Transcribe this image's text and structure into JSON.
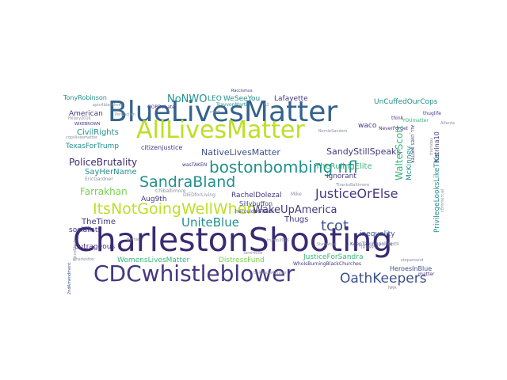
{
  "palette": {
    "navy": "#3b2a72",
    "indigo": "#453781",
    "blue": "#33638d",
    "steel": "#3c508b",
    "teal": "#22908c",
    "green": "#35b779",
    "lime": "#7ad151",
    "yellow": "#bddf26",
    "gray": "#8a8fa0"
  },
  "words": [
    {
      "t": "CharlestonShooting",
      "c": "navy"
    },
    {
      "t": "BlueLivesMatter",
      "c": "blue"
    },
    {
      "t": "AllLivesMatter",
      "c": "yellow"
    },
    {
      "t": "CDCwhistleblower",
      "c": "indigo"
    },
    {
      "t": "bostonbombing nfl",
      "c": "teal"
    },
    {
      "t": "ItsNotGoingWellWhen",
      "c": "yellow"
    },
    {
      "t": "SandraBland",
      "c": "teal"
    },
    {
      "t": "JusticeOrElse",
      "c": "indigo"
    },
    {
      "t": "OathKeepers",
      "c": "steel"
    },
    {
      "t": "tcot",
      "c": "steel"
    },
    {
      "t": "UniteBlue",
      "c": "teal"
    },
    {
      "t": "WakeUpAmerica",
      "c": "indigo"
    },
    {
      "t": "PoliceBrutality",
      "c": "navy"
    },
    {
      "t": "NoNWO",
      "c": "teal"
    },
    {
      "t": "NativeLivesMatter",
      "c": "steel"
    },
    {
      "t": "SandyStillSpeaks",
      "c": "indigo"
    },
    {
      "t": "Farrakhan",
      "c": "lime"
    },
    {
      "t": "TonyRobinson",
      "c": "teal"
    },
    {
      "t": "LEO",
      "c": "teal"
    },
    {
      "t": "WeSeeYou",
      "c": "teal"
    },
    {
      "t": "Lafayette",
      "c": "indigo"
    },
    {
      "t": "UnCuffedOurCops",
      "c": "teal"
    },
    {
      "t": "waco",
      "c": "indigo"
    },
    {
      "t": "American",
      "c": "indigo"
    },
    {
      "t": "CivilRights",
      "c": "teal"
    },
    {
      "t": "TexasForTrump",
      "c": "teal"
    },
    {
      "t": "citizenjustice",
      "c": "indigo"
    },
    {
      "t": "SayHerName",
      "c": "teal"
    },
    {
      "t": "TheRulingElite",
      "c": "green"
    },
    {
      "t": "ignorant",
      "c": "indigo"
    },
    {
      "t": "Aug9th",
      "c": "indigo"
    },
    {
      "t": "RachelDolezal",
      "c": "indigo"
    },
    {
      "t": "Sillybuffon",
      "c": "steel"
    },
    {
      "t": "TheTime",
      "c": "indigo"
    },
    {
      "t": "Thugs",
      "c": "indigo"
    },
    {
      "t": "inequality",
      "c": "steel"
    },
    {
      "t": "socialists",
      "c": "indigo"
    },
    {
      "t": "outrageous",
      "c": "indigo"
    },
    {
      "t": "WomensLivesMatter",
      "c": "green"
    },
    {
      "t": "DistressFund",
      "c": "lime"
    },
    {
      "t": "JusticeForSandra",
      "c": "green"
    },
    {
      "t": "HeroesInBlue",
      "c": "steel"
    },
    {
      "t": "WhoIsBurningBlackChurches",
      "c": "indigo"
    },
    {
      "t": "KeepTalkingpolice",
      "c": "steel"
    },
    {
      "t": "WalterScott",
      "c": "green"
    },
    {
      "t": "McKinney",
      "c": "teal"
    },
    {
      "t": "PrivilegeLooksLikeThis",
      "c": "teal"
    },
    {
      "t": "Katrina10",
      "c": "indigo"
    },
    {
      "t": "NeverForget",
      "c": "indigo"
    },
    {
      "t": "EricGardner",
      "c": "gray"
    },
    {
      "t": "Chibaltimore",
      "c": "gray"
    },
    {
      "t": "DIEDforLiving",
      "c": "gray"
    },
    {
      "t": "hecouldNOTwalk",
      "c": "indigo"
    },
    {
      "t": "wasTAKEN",
      "c": "indigo"
    },
    {
      "t": "TrayvonMartin",
      "c": "teal"
    },
    {
      "t": "GOPDebate",
      "c": "indigo"
    },
    {
      "t": "Hillary2016",
      "c": "gray"
    },
    {
      "t": "Raccismus",
      "c": "indigo"
    },
    {
      "t": "BernieSanders",
      "c": "gray"
    },
    {
      "t": "thuglife",
      "c": "indigo"
    },
    {
      "t": "YOUmatter",
      "c": "green"
    },
    {
      "t": "think",
      "c": "indigo"
    },
    {
      "t": "ThanksBaltimore",
      "c": "gray"
    },
    {
      "t": "trump2016",
      "c": "gray"
    },
    {
      "t": "Mike",
      "c": "gray"
    },
    {
      "t": "TamirRice",
      "c": "gray"
    },
    {
      "t": "BaltimoreOrioles",
      "c": "gray"
    },
    {
      "t": "Charleston",
      "c": "gray"
    },
    {
      "t": "steparound",
      "c": "gray"
    },
    {
      "t": "StayWoke",
      "c": "gray"
    },
    {
      "t": "OpER",
      "c": "gray"
    },
    {
      "t": "TRUMP",
      "c": "gray"
    },
    {
      "t": "NRA",
      "c": "gray"
    },
    {
      "t": "matter",
      "c": "indigo"
    },
    {
      "t": "Bernie",
      "c": "gray"
    },
    {
      "t": "WIKEBROWN",
      "c": "indigo"
    },
    {
      "t": "2ndAmendment",
      "c": "steel"
    },
    {
      "t": "thursday",
      "c": "gray"
    },
    {
      "t": "epic4blacklives",
      "c": "gray"
    },
    {
      "t": "PetRacism",
      "c": "gray"
    },
    {
      "t": "copslivesmatter",
      "c": "gray"
    },
    {
      "t": "A2",
      "c": "gray"
    },
    {
      "t": "nypd",
      "c": "gray"
    },
    {
      "t": "ALL_LIVES_MATTER",
      "c": "indigo"
    },
    {
      "t": "commercial",
      "c": "gray"
    },
    {
      "t": "VoiceBlock",
      "c": "gray"
    },
    {
      "t": "Atlanta",
      "c": "gray"
    }
  ]
}
